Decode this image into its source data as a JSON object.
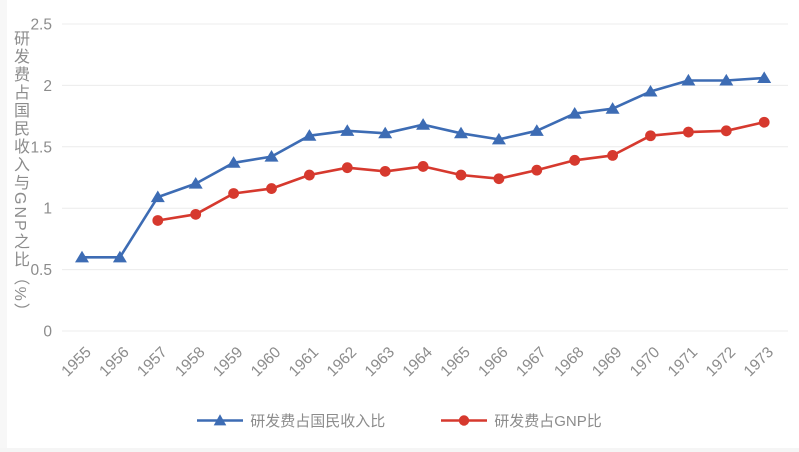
{
  "chart_data": {
    "type": "line",
    "title": "",
    "x": [
      "1955",
      "1956",
      "1957",
      "1958",
      "1959",
      "1960",
      "1961",
      "1962",
      "1963",
      "1964",
      "1965",
      "1966",
      "1967",
      "1968",
      "1969",
      "1970",
      "1971",
      "1972",
      "1973"
    ],
    "xlabel": "",
    "ylabel": "研发费占国民收入与GNP之比（%）",
    "ylim": [
      0,
      2.5
    ],
    "yticks": [
      0,
      0.5,
      1,
      1.5,
      2,
      2.5
    ],
    "ytick_labels": [
      "0",
      "0.5",
      "1",
      "1.5",
      "2",
      "2.5"
    ],
    "grid": true,
    "gridline_color": "#ececec",
    "axis_text_color": "#8c8c8c",
    "legend_position": "bottom",
    "series": [
      {
        "name": "研发费占国民收入比",
        "marker": "triangle",
        "color": "#3d6cb4",
        "values": [
          0.6,
          0.6,
          1.09,
          1.2,
          1.37,
          1.42,
          1.59,
          1.63,
          1.61,
          1.68,
          1.61,
          1.56,
          1.63,
          1.77,
          1.81,
          1.95,
          2.04,
          2.04,
          2.06
        ]
      },
      {
        "name": "研发费占GNP比",
        "marker": "circle",
        "color": "#d6392e",
        "values": [
          null,
          null,
          0.9,
          0.95,
          1.12,
          1.16,
          1.27,
          1.33,
          1.3,
          1.34,
          1.27,
          1.24,
          1.31,
          1.39,
          1.43,
          1.59,
          1.62,
          1.63,
          1.7
        ]
      }
    ]
  }
}
